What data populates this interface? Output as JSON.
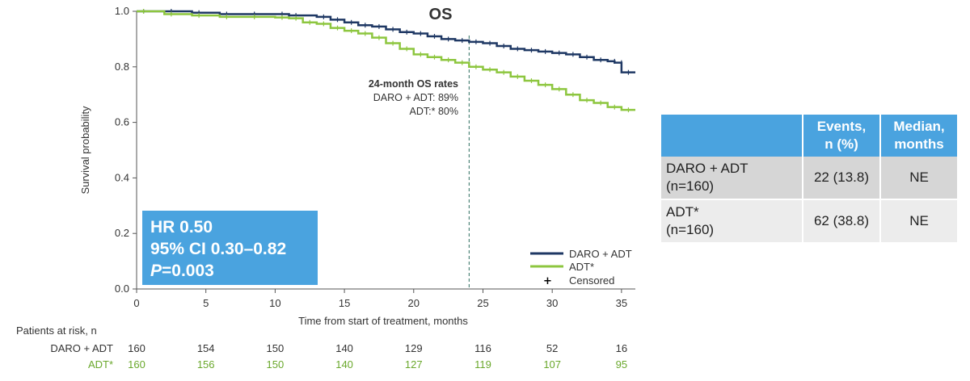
{
  "chart_data": {
    "type": "line",
    "title": "OS",
    "xlabel": "Time from start of treatment, months",
    "ylabel": "Survival probability",
    "xlim": [
      0,
      36
    ],
    "ylim": [
      0,
      1.0
    ],
    "x_ticks": [
      0,
      5,
      10,
      15,
      20,
      25,
      30,
      35
    ],
    "y_ticks": [
      "0.0",
      "0.2",
      "0.4",
      "0.6",
      "0.8",
      "1.0"
    ],
    "y_tick_values": [
      0,
      0.2,
      0.4,
      0.6,
      0.8,
      1.0
    ],
    "reference_line_x": 24,
    "series": [
      {
        "name": "DARO + ADT",
        "color": "#1f3864",
        "points": [
          [
            0,
            1.0
          ],
          [
            2,
            1.0
          ],
          [
            4,
            0.995
          ],
          [
            6,
            0.99
          ],
          [
            8,
            0.99
          ],
          [
            10,
            0.99
          ],
          [
            11,
            0.985
          ],
          [
            13,
            0.98
          ],
          [
            14,
            0.97
          ],
          [
            15,
            0.96
          ],
          [
            16,
            0.95
          ],
          [
            17,
            0.945
          ],
          [
            18,
            0.935
          ],
          [
            19,
            0.925
          ],
          [
            20,
            0.92
          ],
          [
            21,
            0.91
          ],
          [
            22,
            0.9
          ],
          [
            23,
            0.895
          ],
          [
            24,
            0.89
          ],
          [
            25,
            0.885
          ],
          [
            26,
            0.875
          ],
          [
            27,
            0.865
          ],
          [
            28,
            0.86
          ],
          [
            29,
            0.855
          ],
          [
            30,
            0.85
          ],
          [
            31,
            0.845
          ],
          [
            32,
            0.835
          ],
          [
            33,
            0.825
          ],
          [
            34,
            0.82
          ],
          [
            34.5,
            0.815
          ],
          [
            35,
            0.78
          ],
          [
            36,
            0.78
          ]
        ]
      },
      {
        "name": "ADT*",
        "color": "#8dc63f",
        "points": [
          [
            0,
            1.0
          ],
          [
            2,
            0.99
          ],
          [
            4,
            0.985
          ],
          [
            6,
            0.98
          ],
          [
            8,
            0.98
          ],
          [
            10,
            0.978
          ],
          [
            11,
            0.975
          ],
          [
            12,
            0.96
          ],
          [
            13,
            0.955
          ],
          [
            14,
            0.94
          ],
          [
            15,
            0.93
          ],
          [
            16,
            0.92
          ],
          [
            17,
            0.905
          ],
          [
            18,
            0.885
          ],
          [
            19,
            0.865
          ],
          [
            20,
            0.845
          ],
          [
            21,
            0.835
          ],
          [
            22,
            0.825
          ],
          [
            23,
            0.815
          ],
          [
            24,
            0.8
          ],
          [
            25,
            0.79
          ],
          [
            26,
            0.78
          ],
          [
            27,
            0.765
          ],
          [
            28,
            0.75
          ],
          [
            29,
            0.735
          ],
          [
            30,
            0.72
          ],
          [
            31,
            0.7
          ],
          [
            32,
            0.68
          ],
          [
            33,
            0.67
          ],
          [
            34,
            0.655
          ],
          [
            35,
            0.645
          ],
          [
            36,
            0.645
          ]
        ]
      }
    ],
    "legend": {
      "position": "bottom-right",
      "entries": [
        {
          "label": "DARO + ADT",
          "color": "#1f3864",
          "marker": "line"
        },
        {
          "label": "ADT*",
          "color": "#8dc63f",
          "marker": "line"
        },
        {
          "label": "Censored",
          "color": "#000000",
          "marker": "plus"
        }
      ]
    },
    "annotation": {
      "title": "24-month OS rates",
      "line1": "DARO + ADT: 89%",
      "line2": "ADT:* 80%"
    },
    "risk_table": {
      "header": "Patients at risk, n",
      "times": [
        0,
        5,
        10,
        15,
        20,
        25,
        30,
        35
      ],
      "rows": [
        {
          "label": "DARO + ADT",
          "color": "#333333",
          "values": [
            160,
            154,
            150,
            140,
            129,
            116,
            52,
            16
          ]
        },
        {
          "label": "ADT*",
          "color": "#6aa82c",
          "values": [
            160,
            156,
            150,
            140,
            127,
            119,
            107,
            95
          ]
        }
      ]
    }
  },
  "hr_box": {
    "line1": "HR 0.50",
    "line2": "95% CI 0.30–0.82",
    "p_label": "P",
    "p_value": "=0.003",
    "color": "#4aa3df"
  },
  "events_table": {
    "headers": [
      "Events,\nn (%)",
      "Median,\nmonths"
    ],
    "header_events_1": "Events,",
    "header_events_2": "n (%)",
    "header_median_1": "Median,",
    "header_median_2": "months",
    "rows": [
      {
        "group1": "DARO + ADT",
        "group2": "(n=160)",
        "events": "22 (13.8)",
        "median": "NE"
      },
      {
        "group1": "ADT*",
        "group2": "(n=160)",
        "events": "62 (38.8)",
        "median": "NE"
      }
    ]
  }
}
